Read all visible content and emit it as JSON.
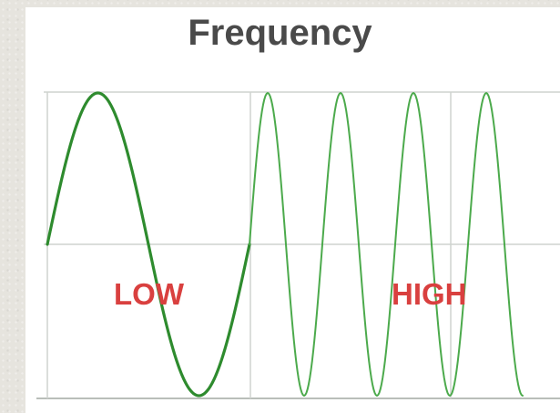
{
  "title": "Frequency",
  "labels": {
    "low": "LOW",
    "high": "HIGH"
  },
  "colors": {
    "low_wave": "#2e8b2e",
    "high_wave": "#4caa4c",
    "label": "#d9403f",
    "grid": "#cfd4cf",
    "title": "#4a4a4a",
    "background": "#e6e4de",
    "panel": "#ffffff"
  },
  "waves": {
    "low": {
      "cycles": 1
    },
    "high": {
      "cycles": 3.75
    }
  }
}
